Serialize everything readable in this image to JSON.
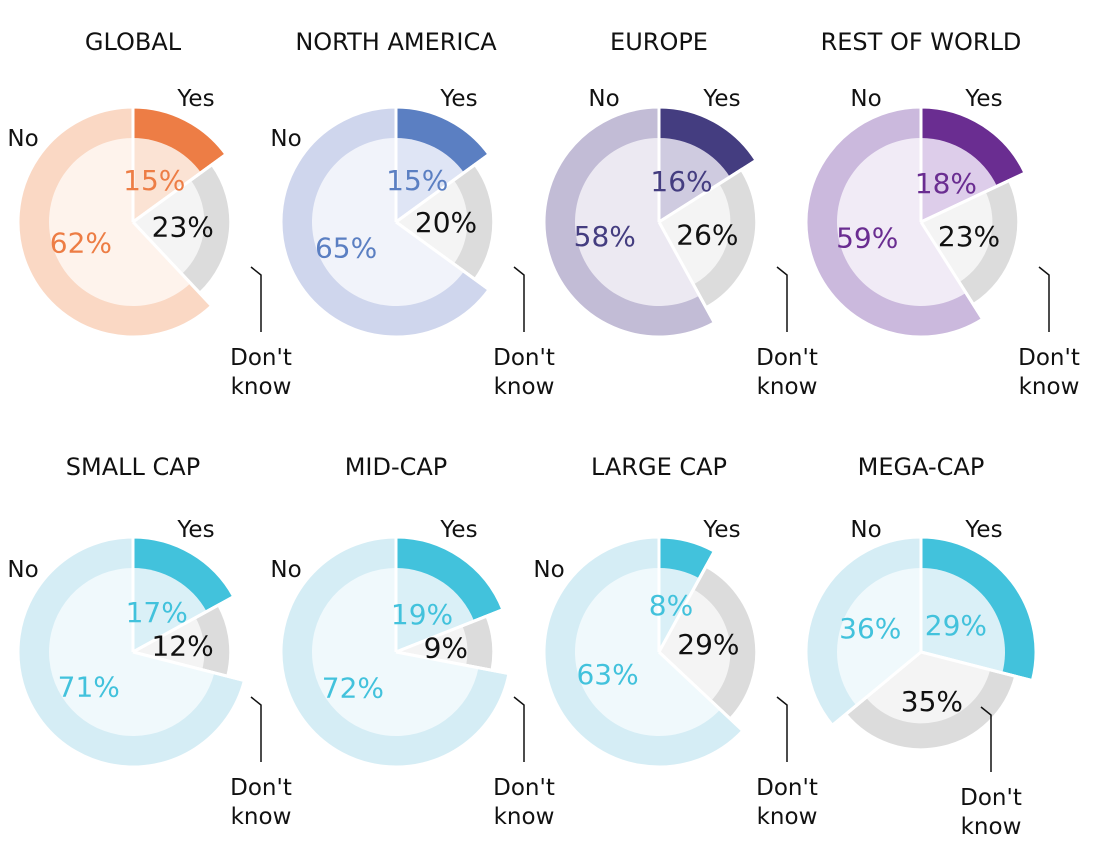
{
  "chart_data": [
    {
      "type": "pie",
      "title": "GLOBAL",
      "categories": [
        "Yes",
        "Don't know",
        "No"
      ],
      "values": [
        15,
        23,
        62
      ],
      "colors": {
        "yes": "#ed7d45",
        "yes_light": "#fbe3d4",
        "no": "#fad8c4",
        "no_light": "#fef3ec",
        "yes_text": "#ed7d45",
        "no_text": "#ed7d45"
      }
    },
    {
      "type": "pie",
      "title": "NORTH AMERICA",
      "categories": [
        "Yes",
        "Don't know",
        "No"
      ],
      "values": [
        15,
        20,
        65
      ],
      "colors": {
        "yes": "#5b7fc2",
        "yes_light": "#dfe5f5",
        "no": "#cfd6ed",
        "no_light": "#f1f3fa",
        "yes_text": "#5b7fc2",
        "no_text": "#5b7fc2"
      }
    },
    {
      "type": "pie",
      "title": "EUROPE",
      "categories": [
        "Yes",
        "Don't know",
        "No"
      ],
      "values": [
        16,
        26,
        58
      ],
      "colors": {
        "yes": "#443d80",
        "yes_light": "#cfcbe0",
        "no": "#c2bcd6",
        "no_light": "#ece9f2",
        "yes_text": "#443d80",
        "no_text": "#443d80"
      }
    },
    {
      "type": "pie",
      "title": "REST OF WORLD",
      "categories": [
        "Yes",
        "Don't know",
        "No"
      ],
      "values": [
        18,
        23,
        59
      ],
      "colors": {
        "yes": "#6a2d91",
        "yes_light": "#ddcdea",
        "no": "#cbb9dd",
        "no_light": "#f1ebf6",
        "yes_text": "#6a2d91",
        "no_text": "#6a2d91"
      }
    },
    {
      "type": "pie",
      "title": "SMALL CAP",
      "categories": [
        "Yes",
        "Don't know",
        "No"
      ],
      "values": [
        17,
        12,
        71
      ],
      "colors": {
        "yes": "#42c2dc",
        "yes_light": "#daf0f7",
        "no": "#d5edf5",
        "no_light": "#f0f9fc",
        "yes_text": "#42c2dc",
        "no_text": "#42c2dc"
      }
    },
    {
      "type": "pie",
      "title": "MID-CAP",
      "categories": [
        "Yes",
        "Don't know",
        "No"
      ],
      "values": [
        19,
        9,
        72
      ],
      "colors": {
        "yes": "#42c2dc",
        "yes_light": "#daf0f7",
        "no": "#d5edf5",
        "no_light": "#f0f9fc",
        "yes_text": "#42c2dc",
        "no_text": "#42c2dc"
      }
    },
    {
      "type": "pie",
      "title": "LARGE CAP",
      "categories": [
        "Yes",
        "Don't know",
        "No"
      ],
      "values": [
        8,
        29,
        63
      ],
      "colors": {
        "yes": "#42c2dc",
        "yes_light": "#daf0f7",
        "no": "#d5edf5",
        "no_light": "#f0f9fc",
        "yes_text": "#42c2dc",
        "no_text": "#42c2dc"
      }
    },
    {
      "type": "pie",
      "title": "MEGA-CAP",
      "categories": [
        "Yes",
        "Don't know",
        "No"
      ],
      "values": [
        29,
        35,
        36
      ],
      "colors": {
        "yes": "#42c2dc",
        "yes_light": "#daf0f7",
        "no": "#d5edf5",
        "no_light": "#f0f9fc",
        "yes_text": "#42c2dc",
        "no_text": "#42c2dc"
      }
    }
  ],
  "labels": {
    "yes": "Yes",
    "no": "No",
    "dk_line1": "Don't",
    "dk_line2": "know"
  },
  "dk_colors": {
    "outer": "#dcdcdc",
    "inner": "#f4f4f4",
    "text": "#111111"
  },
  "leader_color": "#111111",
  "title_color": "#111111",
  "category_label_color": "#111111"
}
